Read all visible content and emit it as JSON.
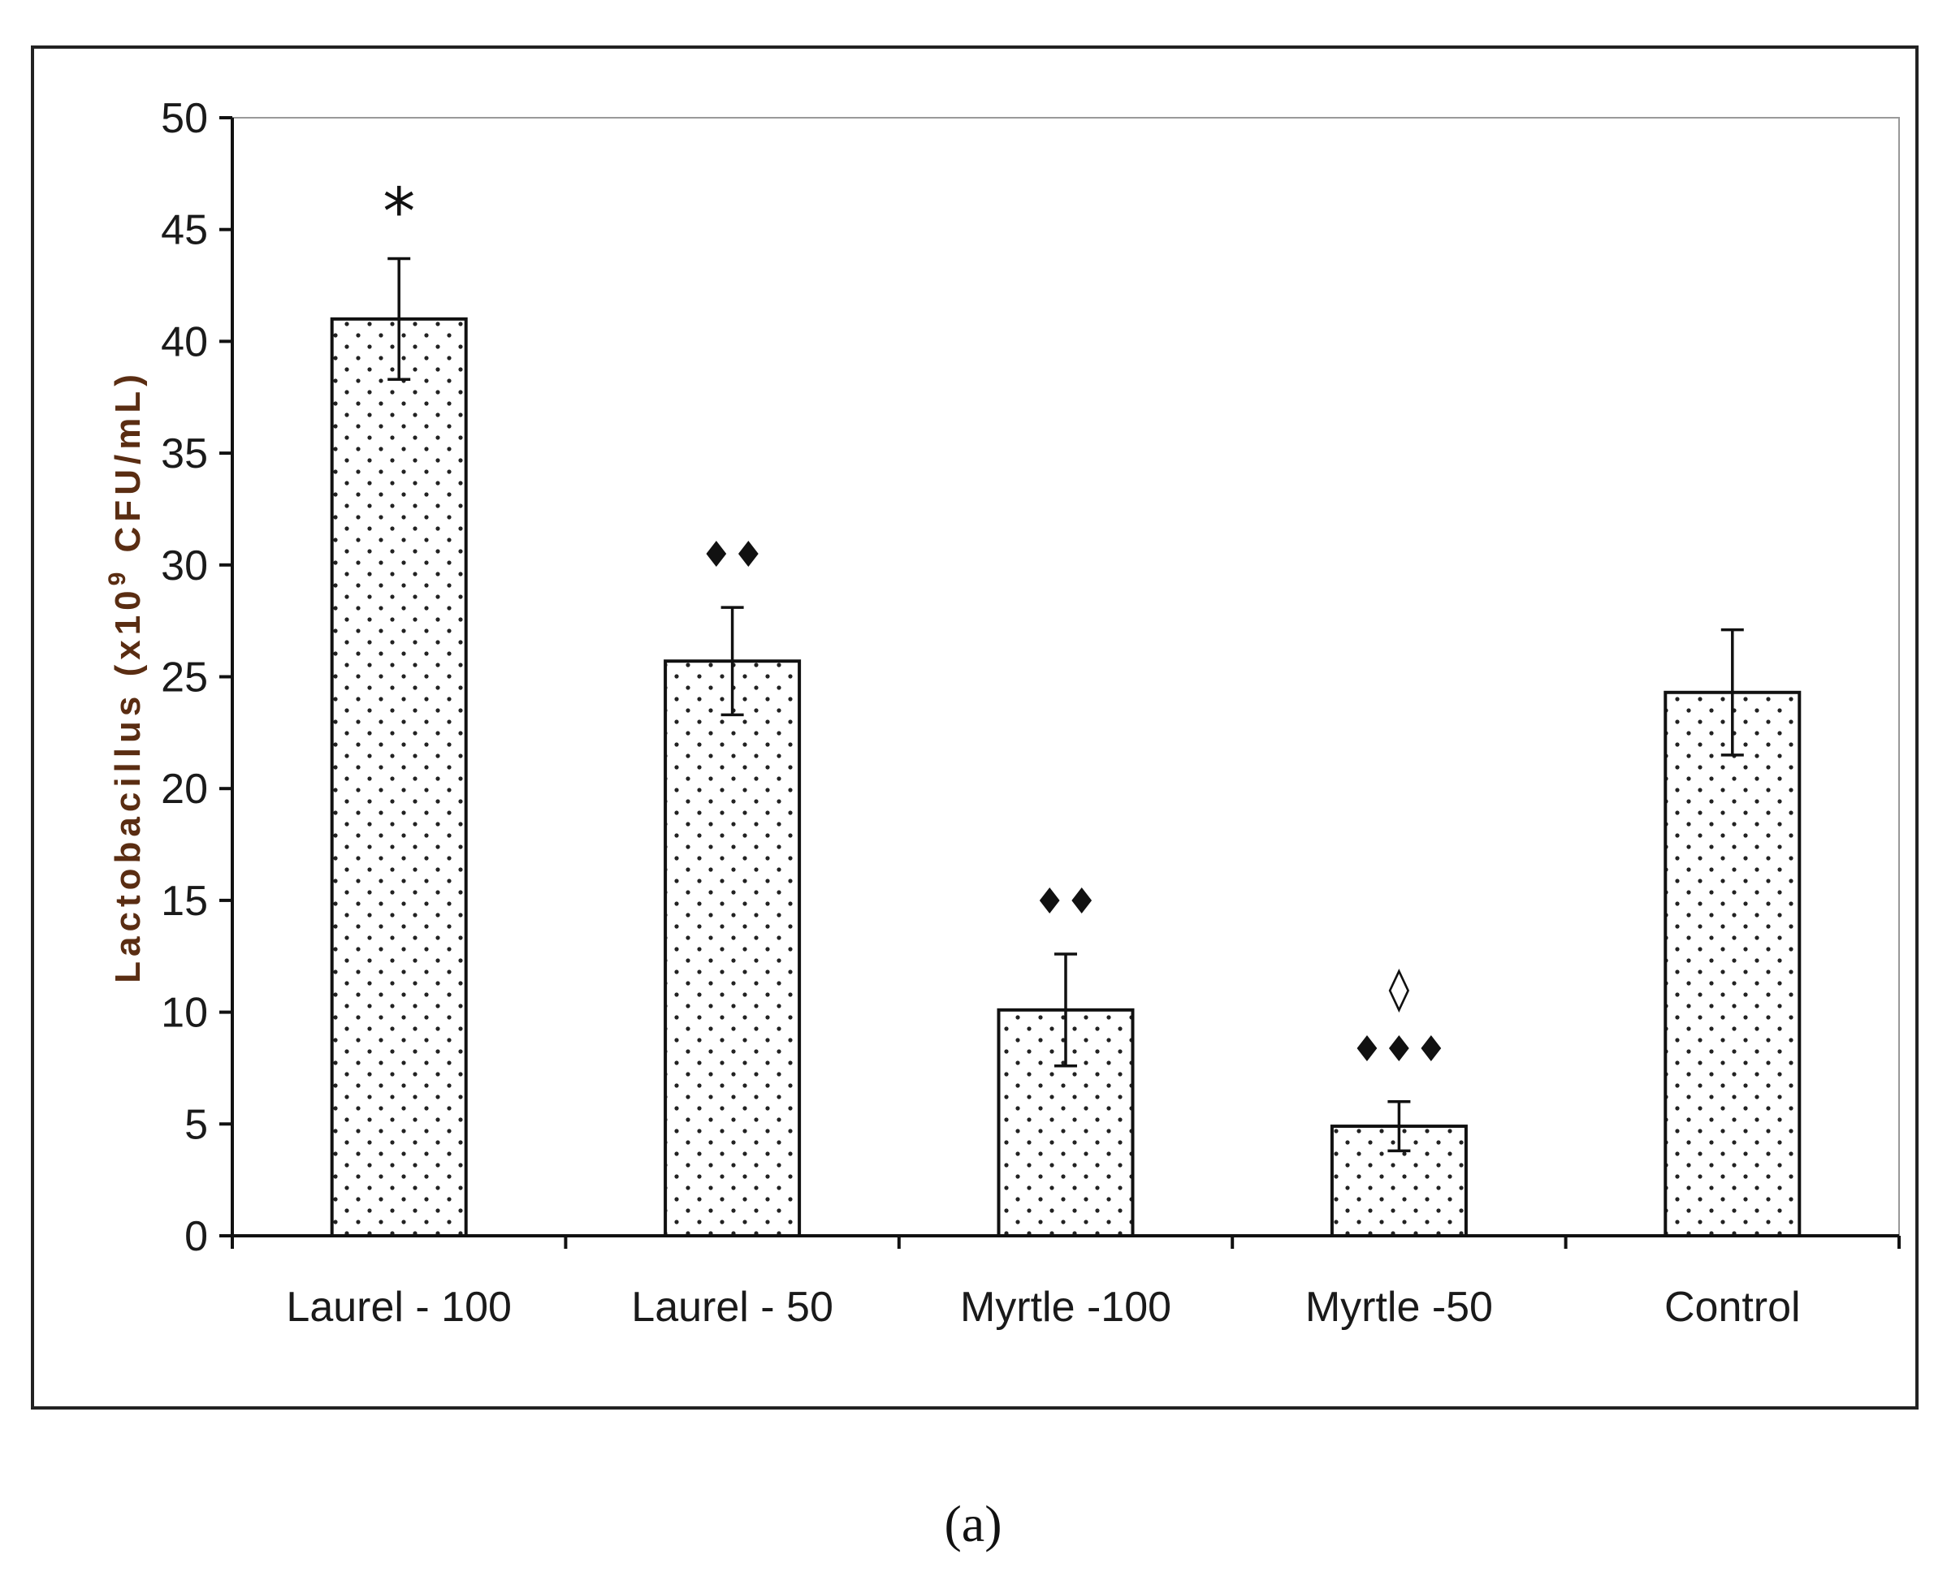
{
  "chart_data": {
    "type": "bar",
    "categories": [
      "Laurel - 100",
      "Laurel - 50",
      "Myrtle -100",
      "Myrtle -50",
      "Control"
    ],
    "values": [
      41,
      25.7,
      10.1,
      4.9,
      24.3
    ],
    "errors": [
      2.7,
      2.4,
      2.5,
      1.1,
      2.8
    ],
    "significance": [
      "*",
      "♦♦",
      "♦♦",
      "◊\n♦♦♦",
      ""
    ],
    "ylabel_parts": {
      "main": "Lactobacillus (x10",
      "sup": "9",
      "tail": " CFU/mL)"
    },
    "ylim": [
      0,
      50
    ],
    "yticks": [
      0,
      5,
      10,
      15,
      20,
      25,
      30,
      35,
      40,
      45,
      50
    ],
    "grid": false,
    "bar_fill": "dotted pattern",
    "colors": {
      "bar_stroke": "#111111",
      "dots": "#222222",
      "ylabel": "#5a2d12",
      "frame": "#222222"
    }
  },
  "panel_label": "(a)"
}
